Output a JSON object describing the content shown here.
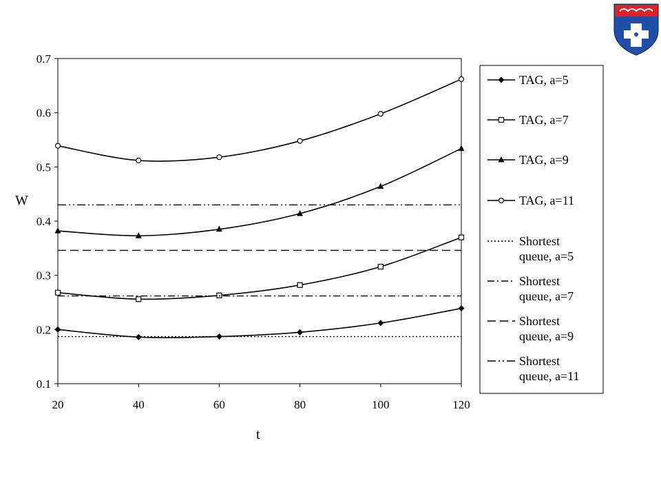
{
  "logo": {
    "name": "university-crest",
    "colors": [
      "#d9252a",
      "#1f4fa8",
      "#ffffff"
    ]
  },
  "chart_data": {
    "type": "line",
    "xlabel": "t",
    "ylabel": "W",
    "x": [
      20,
      40,
      60,
      80,
      100,
      120
    ],
    "xlim": [
      20,
      120
    ],
    "ylim": [
      0.1,
      0.7
    ],
    "xticks": [
      "20",
      "40",
      "60",
      "80",
      "100",
      "120"
    ],
    "yticks": [
      "0.1",
      "0.2",
      "0.3",
      "0.4",
      "0.5",
      "0.6",
      "0.7"
    ],
    "grid": false,
    "legend_position": "right",
    "series": [
      {
        "name": "TAG, a=5",
        "marker": "diamond",
        "values": [
          0.2,
          0.186,
          0.187,
          0.195,
          0.212,
          0.239
        ]
      },
      {
        "name": "TAG, a=7",
        "marker": "square",
        "values": [
          0.268,
          0.256,
          0.263,
          0.282,
          0.316,
          0.37
        ]
      },
      {
        "name": "TAG, a=9",
        "marker": "triangle",
        "values": [
          0.382,
          0.373,
          0.385,
          0.414,
          0.464,
          0.534
        ]
      },
      {
        "name": "TAG, a=11",
        "marker": "circle",
        "values": [
          0.539,
          0.512,
          0.518,
          0.548,
          0.598,
          0.662
        ]
      },
      {
        "name": [
          "Shortest",
          "queue, a=5"
        ],
        "style": "dotted",
        "constant": 0.187
      },
      {
        "name": [
          "Shortest",
          "queue, a=7"
        ],
        "style": "dashdot",
        "constant": 0.262
      },
      {
        "name": [
          "Shortest",
          "queue, a=9"
        ],
        "style": "dashed",
        "constant": 0.346
      },
      {
        "name": [
          "Shortest",
          "queue, a=11"
        ],
        "style": "dashdotdot",
        "constant": 0.43
      }
    ]
  }
}
